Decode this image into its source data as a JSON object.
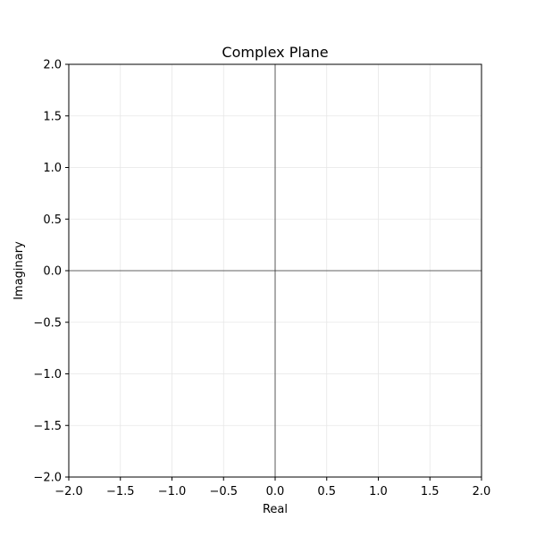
{
  "chart_data": {
    "type": "scatter",
    "title": "Complex Plane",
    "xlabel": "Real",
    "ylabel": "Imaginary",
    "xlim": [
      -2.0,
      2.0
    ],
    "ylim": [
      -2.0,
      2.0
    ],
    "xticks": [
      -2.0,
      -1.5,
      -1.0,
      -0.5,
      0.0,
      0.5,
      1.0,
      1.5,
      2.0
    ],
    "yticks": [
      -2.0,
      -1.5,
      -1.0,
      -0.5,
      0.0,
      0.5,
      1.0,
      1.5,
      2.0
    ],
    "xtick_labels": [
      "−2.0",
      "−1.5",
      "−1.0",
      "−0.5",
      "0.0",
      "0.5",
      "1.0",
      "1.5",
      "2.0"
    ],
    "ytick_labels": [
      "−2.0",
      "−1.5",
      "−1.0",
      "−0.5",
      "0.0",
      "0.5",
      "1.0",
      "1.5",
      "2.0"
    ],
    "grid": true,
    "reference_lines": {
      "x": 0,
      "y": 0
    },
    "series": [],
    "colors": {
      "grid": "#e6e6e6",
      "axes": "#000000",
      "reference": "#333333"
    }
  }
}
